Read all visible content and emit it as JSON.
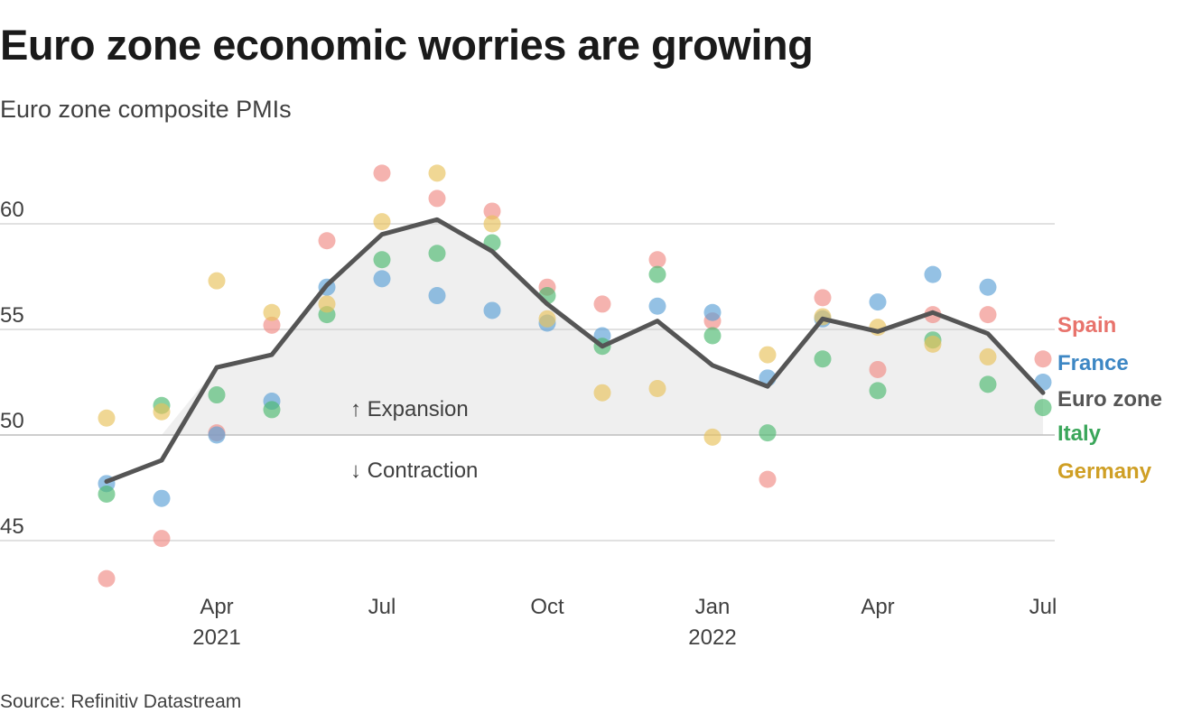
{
  "header": {
    "title": "Euro zone economic worries are growing",
    "subtitle": "Euro zone composite PMIs"
  },
  "footer": {
    "source": "Source: Refinitiv Datastream"
  },
  "chart_data": {
    "type": "line",
    "x": [
      "2021-02",
      "2021-03",
      "2021-04",
      "2021-05",
      "2021-06",
      "2021-07",
      "2021-08",
      "2021-09",
      "2021-10",
      "2021-11",
      "2021-12",
      "2022-01",
      "2022-02",
      "2022-03",
      "2022-04",
      "2022-05",
      "2022-06",
      "2022-07"
    ],
    "x_tick_labels": [
      {
        "x": "2021-04",
        "label": "Apr",
        "year": "2021"
      },
      {
        "x": "2021-07",
        "label": "Jul",
        "year": ""
      },
      {
        "x": "2021-10",
        "label": "Oct",
        "year": ""
      },
      {
        "x": "2022-01",
        "label": "Jan",
        "year": "2022"
      },
      {
        "x": "2022-04",
        "label": "Apr",
        "year": ""
      },
      {
        "x": "2022-07",
        "label": "Jul",
        "year": ""
      }
    ],
    "y_ticks": [
      {
        "value": 45,
        "label": "45"
      },
      {
        "value": 50,
        "label": "50"
      },
      {
        "value": 55,
        "label": "55"
      },
      {
        "value": 60,
        "label": "60"
      }
    ],
    "ylim": [
      42,
      64
    ],
    "grid": true,
    "reference_line": 50,
    "annotations": {
      "expansion": "↑ Expansion",
      "contraction": "↓ Contraction"
    },
    "series": [
      {
        "name": "Spain",
        "style": "dots",
        "color": "#f08a84",
        "values": [
          43.2,
          45.1,
          50.1,
          55.2,
          59.2,
          62.4,
          61.2,
          60.6,
          57.0,
          56.2,
          58.3,
          55.4,
          47.9,
          56.5,
          53.1,
          55.7,
          55.7,
          53.6
        ]
      },
      {
        "name": "France",
        "style": "dots",
        "color": "#5aa0d6",
        "values": [
          47.7,
          47.0,
          50.0,
          51.6,
          57.0,
          57.4,
          56.6,
          55.9,
          55.3,
          54.7,
          56.1,
          55.8,
          52.7,
          55.5,
          56.3,
          57.6,
          57.0,
          52.5
        ]
      },
      {
        "name": "Euro zone",
        "style": "line",
        "color": "#555555",
        "values": [
          47.8,
          48.8,
          53.2,
          53.8,
          57.1,
          59.5,
          60.2,
          58.7,
          56.2,
          54.2,
          55.4,
          53.3,
          52.3,
          55.5,
          54.9,
          55.8,
          54.8,
          52.0
        ]
      },
      {
        "name": "Italy",
        "style": "dots",
        "color": "#4cb86e",
        "values": [
          47.2,
          51.4,
          51.9,
          51.2,
          55.7,
          58.3,
          58.6,
          59.1,
          56.6,
          54.2,
          57.6,
          54.7,
          50.1,
          53.6,
          52.1,
          54.5,
          52.4,
          51.3
        ]
      },
      {
        "name": "Germany",
        "style": "dots",
        "color": "#e8c25a",
        "values": [
          50.8,
          51.1,
          57.3,
          55.8,
          56.2,
          60.1,
          62.4,
          60.0,
          55.5,
          52.0,
          52.2,
          49.9,
          53.8,
          55.6,
          55.1,
          54.3,
          53.7,
          null
        ]
      }
    ]
  }
}
